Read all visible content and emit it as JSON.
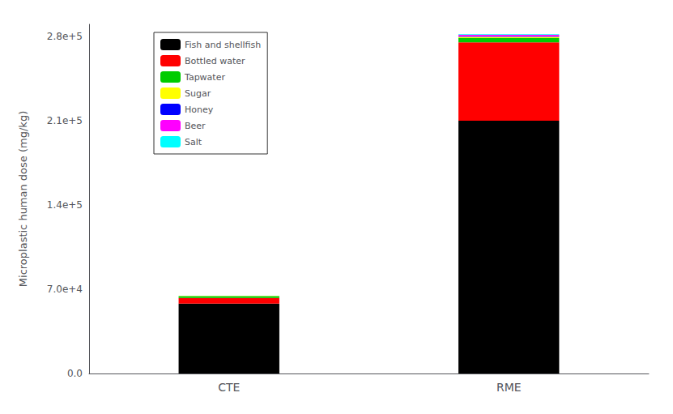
{
  "chart_data": {
    "type": "bar",
    "stacked": true,
    "categories": [
      "CTE",
      "RME"
    ],
    "series": [
      {
        "name": "Fish and shellfish",
        "color": "#000000",
        "values": [
          58000,
          210000
        ]
      },
      {
        "name": "Bottled water",
        "color": "#ff0000",
        "values": [
          4800,
          65000
        ]
      },
      {
        "name": "Tapwater",
        "color": "#00cc00",
        "values": [
          1500,
          3500
        ]
      },
      {
        "name": "Sugar",
        "color": "#ffff00",
        "values": [
          80,
          1000
        ]
      },
      {
        "name": "Honey",
        "color": "#0000ff",
        "values": [
          40,
          500
        ]
      },
      {
        "name": "Beer",
        "color": "#ff00ff",
        "values": [
          40,
          1200
        ]
      },
      {
        "name": "Salt",
        "color": "#00ffff",
        "values": [
          20,
          600
        ]
      }
    ],
    "ylabel": "Microplastic human dose (mg/kg)",
    "ylim": [
      0,
      290000
    ],
    "yticks": [
      {
        "value": 0,
        "label": "0.0"
      },
      {
        "value": 70000,
        "label": "7.0e+4"
      },
      {
        "value": 140000,
        "label": "1.4e+5"
      },
      {
        "value": 210000,
        "label": "2.1e+5"
      },
      {
        "value": 280000,
        "label": "2.8e+5"
      }
    ],
    "legend": "upper left",
    "grid": false
  }
}
